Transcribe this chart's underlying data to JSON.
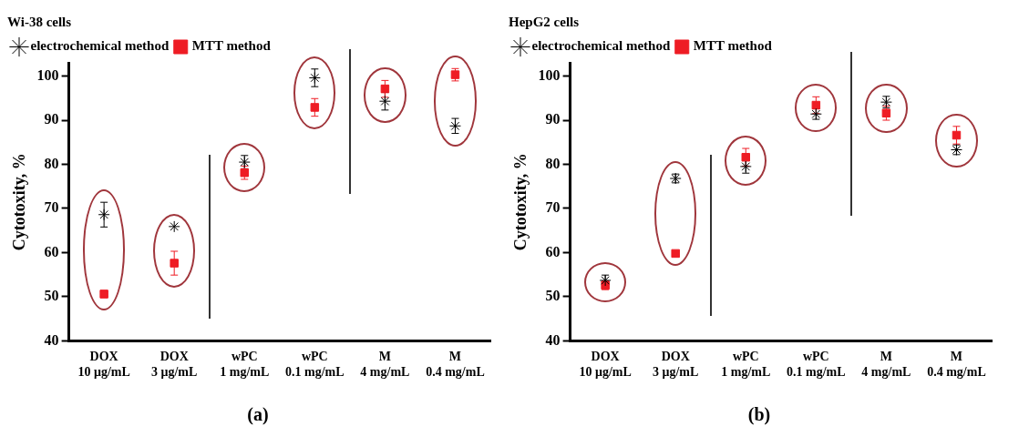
{
  "chart_data": [
    {
      "type": "scatter",
      "title": "Wi-38 cells",
      "ylabel": "Cytotoxity, %",
      "categories": [
        "DOX\n10 μg/mL",
        "DOX\n3 μg/mL",
        "wPC\n1 mg/mL",
        "wPC\n0.1 mg/mL",
        "M\n4 mg/mL",
        "M\n0.4 mg/mL"
      ],
      "series": [
        {
          "name": "electrochemical method",
          "color": "#000000",
          "marker": "cross",
          "values": [
            68.6,
            65.9,
            80.5,
            99.6,
            94.3,
            88.7
          ],
          "errors": [
            2.8,
            null,
            1.5,
            2,
            2,
            1.7
          ]
        },
        {
          "name": "MTT method",
          "color": "#ee1c24",
          "marker": "square",
          "values": [
            50.6,
            57.6,
            78.1,
            92.9,
            97.1,
            100.3
          ],
          "errors": [
            0.8,
            2.7,
            1.5,
            2,
            1.9,
            1.4
          ]
        }
      ],
      "ylim": [
        40,
        103
      ],
      "yticks": [
        40,
        50,
        60,
        70,
        80,
        90,
        100
      ],
      "grid": false,
      "legend": "top left",
      "annotations": [
        "(a)"
      ]
    },
    {
      "type": "scatter",
      "title": "HepG2 cells",
      "ylabel": "Cytotoxity, %",
      "categories": [
        "DOX\n10 μg/mL",
        "DOX\n3 μg/mL",
        "wPC\n1 mg/mL",
        "wPC\n0.1 mg/mL",
        "M\n4 mg/mL",
        "M\n0.4 mg/mL"
      ],
      "series": [
        {
          "name": "electrochemical method",
          "color": "#000000",
          "marker": "cross",
          "values": [
            53.7,
            76.8,
            79.5,
            91.4,
            94.1,
            83.3
          ],
          "errors": [
            1.2,
            1,
            1.5,
            1.2,
            1.3,
            1.1
          ]
        },
        {
          "name": "MTT method",
          "color": "#ee1c24",
          "marker": "square",
          "values": [
            52.6,
            59.8,
            81.6,
            93.4,
            91.6,
            86.6
          ],
          "errors": [
            1,
            null,
            2,
            1.9,
            1.6,
            2
          ]
        }
      ],
      "ylim": [
        40,
        103
      ],
      "yticks": [
        40,
        50,
        60,
        70,
        80,
        90,
        100
      ],
      "grid": false,
      "legend": "top left",
      "annotations": [
        "(b)"
      ]
    }
  ]
}
